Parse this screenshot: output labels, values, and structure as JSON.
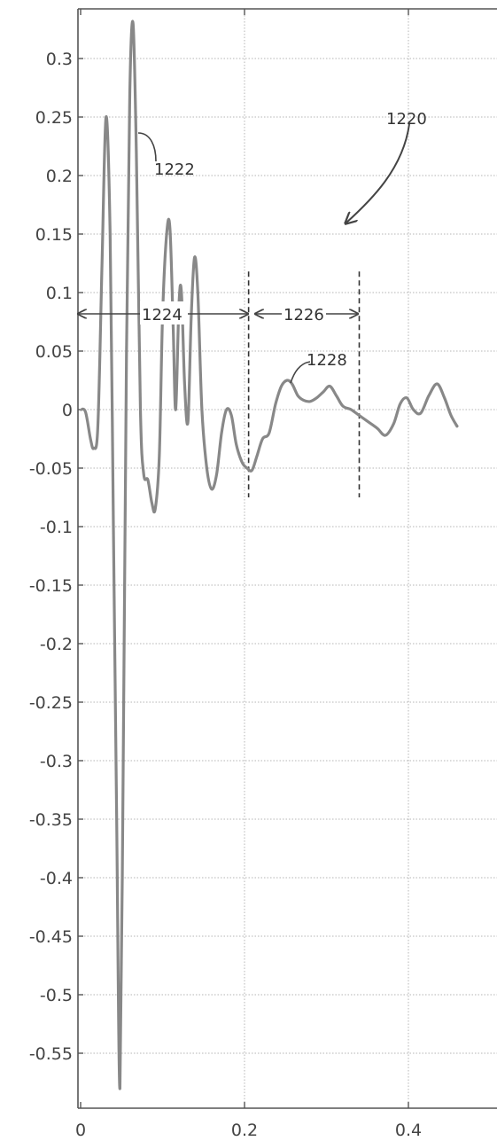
{
  "chart_data": {
    "type": "line",
    "title": "",
    "xlabel": "",
    "ylabel": "",
    "xlim": [
      0,
      0.5
    ],
    "ylim": [
      -0.6,
      0.34
    ],
    "grid": true,
    "x_ticks": [
      0,
      0.2,
      0.4
    ],
    "x_tick_labels": [
      "0",
      "0.2",
      "0.4"
    ],
    "y_ticks": [
      0.3,
      0.25,
      0.2,
      0.15,
      0.1,
      0.05,
      0,
      -0.05,
      -0.1,
      -0.15,
      -0.2,
      -0.25,
      -0.3,
      -0.35,
      -0.4,
      -0.45,
      -0.5,
      -0.55
    ],
    "y_tick_labels": [
      "0.3",
      "0.25",
      "0.2",
      "0.15",
      "0.1",
      "0.05",
      "0",
      "-0.05",
      "-0.1",
      "-0.15",
      "-0.2",
      "-0.25",
      "-0.3",
      "-0.35",
      "-0.4",
      "-0.45",
      "-0.5",
      "-0.55"
    ],
    "series": [
      {
        "name": "",
        "color": "#888888",
        "points": [
          [
            0.0,
            0.0
          ],
          [
            0.006,
            -0.002
          ],
          [
            0.012,
            -0.025
          ],
          [
            0.016,
            -0.033
          ],
          [
            0.021,
            -0.015
          ],
          [
            0.026,
            0.12
          ],
          [
            0.031,
            0.25
          ],
          [
            0.036,
            0.15
          ],
          [
            0.04,
            -0.1
          ],
          [
            0.044,
            -0.35
          ],
          [
            0.048,
            -0.58
          ],
          [
            0.052,
            -0.3
          ],
          [
            0.056,
            0.05
          ],
          [
            0.06,
            0.27
          ],
          [
            0.064,
            0.33
          ],
          [
            0.068,
            0.22
          ],
          [
            0.073,
            0.0
          ],
          [
            0.077,
            -0.055
          ],
          [
            0.082,
            -0.06
          ],
          [
            0.087,
            -0.08
          ],
          [
            0.091,
            -0.085
          ],
          [
            0.096,
            -0.04
          ],
          [
            0.1,
            0.08
          ],
          [
            0.105,
            0.15
          ],
          [
            0.109,
            0.155
          ],
          [
            0.113,
            0.07
          ],
          [
            0.116,
            0.0
          ],
          [
            0.12,
            0.09
          ],
          [
            0.123,
            0.1
          ],
          [
            0.127,
            0.02
          ],
          [
            0.131,
            -0.01
          ],
          [
            0.135,
            0.08
          ],
          [
            0.139,
            0.13
          ],
          [
            0.143,
            0.1
          ],
          [
            0.148,
            0.0
          ],
          [
            0.154,
            -0.05
          ],
          [
            0.16,
            -0.068
          ],
          [
            0.166,
            -0.055
          ],
          [
            0.172,
            -0.02
          ],
          [
            0.178,
            0.0
          ],
          [
            0.184,
            -0.005
          ],
          [
            0.19,
            -0.03
          ],
          [
            0.197,
            -0.045
          ],
          [
            0.203,
            -0.05
          ],
          [
            0.209,
            -0.052
          ],
          [
            0.215,
            -0.04
          ],
          [
            0.222,
            -0.025
          ],
          [
            0.23,
            -0.02
          ],
          [
            0.238,
            0.005
          ],
          [
            0.245,
            0.02
          ],
          [
            0.252,
            0.025
          ],
          [
            0.258,
            0.022
          ],
          [
            0.265,
            0.012
          ],
          [
            0.272,
            0.008
          ],
          [
            0.28,
            0.007
          ],
          [
            0.288,
            0.01
          ],
          [
            0.296,
            0.015
          ],
          [
            0.304,
            0.02
          ],
          [
            0.312,
            0.012
          ],
          [
            0.32,
            0.003
          ],
          [
            0.33,
            0.0
          ],
          [
            0.34,
            -0.005
          ],
          [
            0.35,
            -0.01
          ],
          [
            0.362,
            -0.016
          ],
          [
            0.372,
            -0.022
          ],
          [
            0.382,
            -0.012
          ],
          [
            0.39,
            0.005
          ],
          [
            0.398,
            0.01
          ],
          [
            0.406,
            0.0
          ],
          [
            0.415,
            -0.003
          ],
          [
            0.425,
            0.012
          ],
          [
            0.435,
            0.022
          ],
          [
            0.444,
            0.01
          ],
          [
            0.452,
            -0.005
          ],
          [
            0.46,
            -0.015
          ]
        ]
      }
    ],
    "annotations": [
      {
        "label": "1220",
        "kind": "arrow-callout"
      },
      {
        "label": "1222",
        "kind": "leader"
      },
      {
        "label": "1224",
        "kind": "span",
        "x_range": [
          0.0,
          0.2
        ]
      },
      {
        "label": "1226",
        "kind": "span",
        "x_range": [
          0.205,
          0.34
        ]
      },
      {
        "label": "1228",
        "kind": "leader"
      }
    ],
    "dashed_vlines": [
      0.205,
      0.34
    ],
    "vline_y_range": [
      -0.075,
      0.118
    ]
  }
}
